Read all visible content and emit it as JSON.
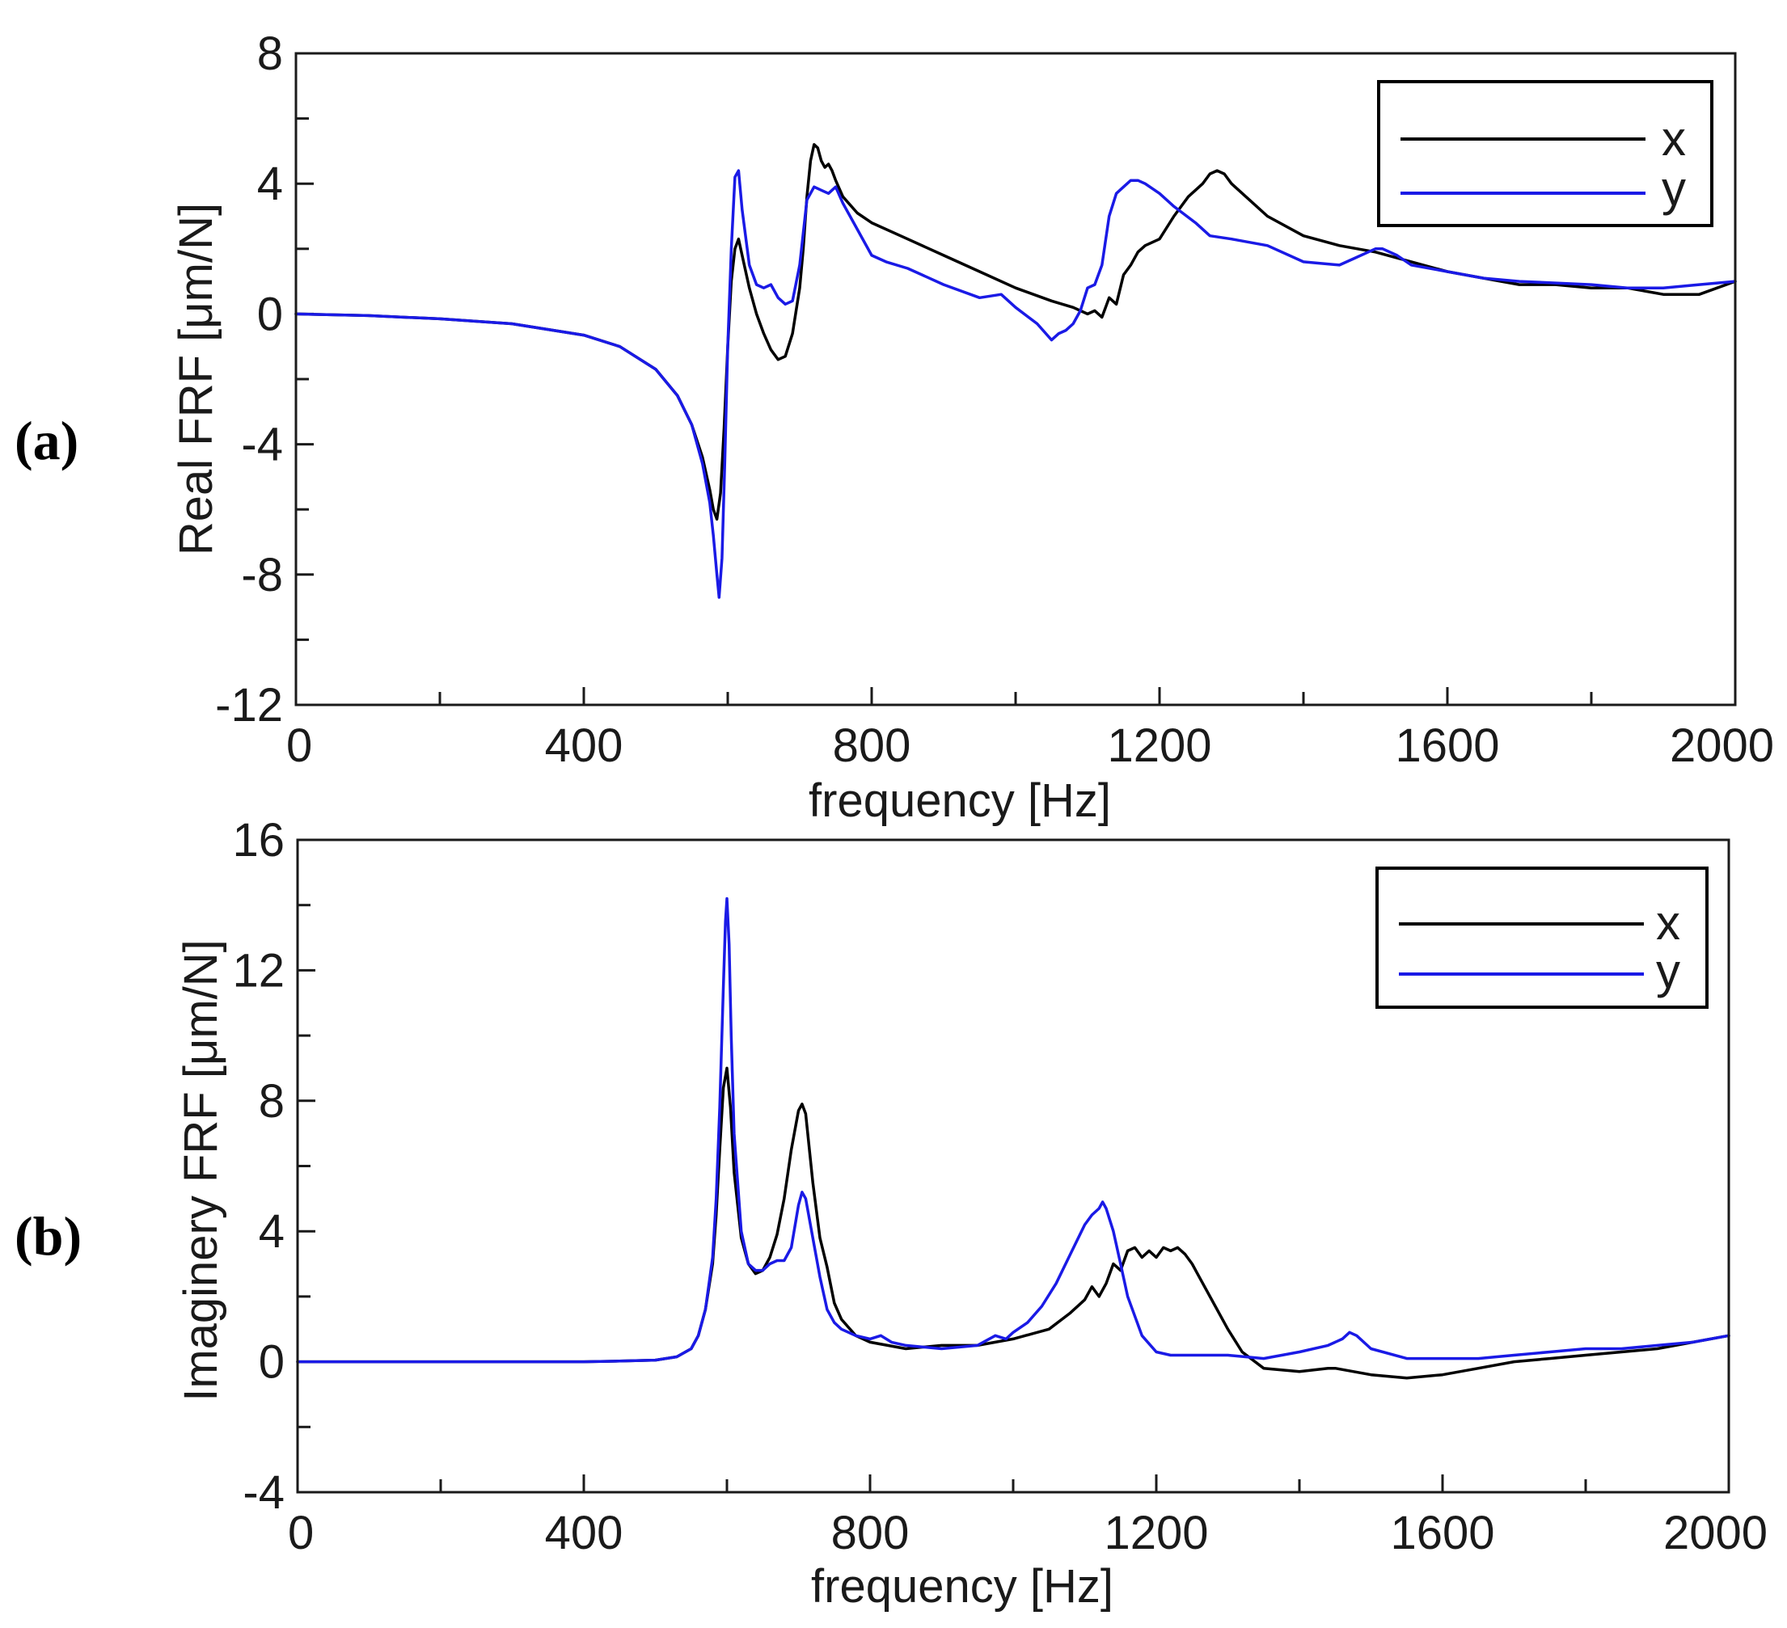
{
  "chart_data": [
    {
      "type": "line",
      "panel_label": "(a)",
      "title": "",
      "xlabel": "frequency [Hz]",
      "ylabel": "Real FRF [μm/N]",
      "xlim": [
        0,
        2000
      ],
      "ylim": [
        -12,
        8
      ],
      "xticks": [
        0,
        400,
        800,
        1200,
        1600,
        2000
      ],
      "xtick_labels": [
        "0",
        "400",
        "800",
        "1200",
        "1600",
        "2000"
      ],
      "yticks": [
        -12,
        -8,
        -4,
        0,
        4,
        8
      ],
      "ytick_labels": [
        "-12",
        "-8",
        "-4",
        "0",
        "4",
        "8"
      ],
      "legend_position": "top-right",
      "series": [
        {
          "name": "x",
          "color": "#000000",
          "x": [
            0,
            100,
            200,
            300,
            400,
            450,
            500,
            530,
            550,
            565,
            575,
            580,
            585,
            590,
            595,
            600,
            605,
            610,
            615,
            620,
            630,
            640,
            650,
            660,
            670,
            680,
            690,
            700,
            705,
            710,
            715,
            720,
            725,
            730,
            735,
            740,
            745,
            750,
            760,
            780,
            800,
            850,
            900,
            950,
            1000,
            1050,
            1080,
            1100,
            1110,
            1120,
            1125,
            1130,
            1140,
            1150,
            1160,
            1170,
            1180,
            1200,
            1220,
            1240,
            1260,
            1270,
            1280,
            1290,
            1300,
            1320,
            1350,
            1400,
            1450,
            1500,
            1550,
            1600,
            1650,
            1700,
            1750,
            1800,
            1850,
            1900,
            1950,
            2000
          ],
          "y": [
            0,
            -0.05,
            -0.15,
            -0.3,
            -0.65,
            -1.0,
            -1.7,
            -2.5,
            -3.4,
            -4.4,
            -5.4,
            -6.0,
            -6.3,
            -5.5,
            -3.5,
            -1.0,
            1.0,
            2.0,
            2.3,
            1.8,
            0.8,
            0.0,
            -0.6,
            -1.1,
            -1.4,
            -1.3,
            -0.6,
            0.8,
            2.0,
            3.6,
            4.7,
            5.2,
            5.1,
            4.7,
            4.5,
            4.6,
            4.4,
            4.1,
            3.6,
            3.1,
            2.8,
            2.3,
            1.8,
            1.3,
            0.8,
            0.4,
            0.2,
            0.0,
            0.1,
            -0.1,
            0.2,
            0.5,
            0.3,
            1.2,
            1.5,
            1.9,
            2.1,
            2.3,
            3.0,
            3.6,
            4.0,
            4.3,
            4.4,
            4.3,
            4.0,
            3.6,
            3.0,
            2.4,
            2.1,
            1.9,
            1.6,
            1.3,
            1.1,
            0.9,
            0.9,
            0.8,
            0.8,
            0.6,
            0.6,
            1.0
          ]
        },
        {
          "name": "y",
          "color": "#1a1ae6",
          "x": [
            0,
            100,
            200,
            300,
            400,
            450,
            500,
            530,
            550,
            565,
            575,
            580,
            585,
            588,
            592,
            596,
            600,
            605,
            610,
            615,
            620,
            630,
            640,
            650,
            660,
            670,
            680,
            690,
            700,
            710,
            720,
            730,
            740,
            750,
            760,
            780,
            800,
            820,
            850,
            900,
            950,
            980,
            1000,
            1030,
            1050,
            1060,
            1070,
            1080,
            1090,
            1100,
            1110,
            1120,
            1130,
            1140,
            1150,
            1160,
            1170,
            1180,
            1200,
            1220,
            1250,
            1270,
            1300,
            1350,
            1400,
            1450,
            1470,
            1490,
            1500,
            1510,
            1530,
            1550,
            1600,
            1650,
            1700,
            1800,
            1850,
            1900,
            1950,
            2000
          ],
          "y": [
            0,
            -0.05,
            -0.15,
            -0.3,
            -0.65,
            -1.0,
            -1.7,
            -2.5,
            -3.4,
            -4.6,
            -5.8,
            -6.8,
            -8.0,
            -8.7,
            -7.5,
            -4.5,
            -1.0,
            2.0,
            4.2,
            4.4,
            3.2,
            1.5,
            0.9,
            0.8,
            0.9,
            0.5,
            0.3,
            0.4,
            1.5,
            3.5,
            3.9,
            3.8,
            3.7,
            3.9,
            3.4,
            2.6,
            1.8,
            1.6,
            1.4,
            0.9,
            0.5,
            0.6,
            0.2,
            -0.3,
            -0.8,
            -0.6,
            -0.5,
            -0.3,
            0.1,
            0.8,
            0.9,
            1.5,
            3.0,
            3.7,
            3.9,
            4.1,
            4.1,
            4.0,
            3.7,
            3.3,
            2.8,
            2.4,
            2.3,
            2.1,
            1.6,
            1.5,
            1.7,
            1.9,
            2.0,
            2.0,
            1.8,
            1.5,
            1.3,
            1.1,
            1.0,
            0.9,
            0.8,
            0.8,
            0.9,
            1.0
          ]
        }
      ]
    },
    {
      "type": "line",
      "panel_label": "(b)",
      "title": "",
      "xlabel": "frequency [Hz]",
      "ylabel": "Imaginery FRF [μm/N]",
      "xlim": [
        0,
        2000
      ],
      "ylim": [
        -4,
        16
      ],
      "xticks": [
        0,
        400,
        800,
        1200,
        1600,
        2000
      ],
      "xtick_labels": [
        "0",
        "400",
        "800",
        "1200",
        "1600",
        "2000"
      ],
      "yticks": [
        -4,
        0,
        4,
        8,
        12,
        16
      ],
      "ytick_labels": [
        "-4",
        "0",
        "4",
        "8",
        "12",
        "16"
      ],
      "legend_position": "top-right",
      "series": [
        {
          "name": "x",
          "color": "#000000",
          "x": [
            0,
            300,
            400,
            450,
            500,
            530,
            550,
            560,
            570,
            580,
            585,
            590,
            595,
            600,
            605,
            610,
            620,
            630,
            640,
            650,
            660,
            670,
            680,
            690,
            700,
            705,
            710,
            720,
            730,
            740,
            750,
            760,
            780,
            800,
            850,
            900,
            950,
            1000,
            1050,
            1080,
            1100,
            1110,
            1120,
            1130,
            1140,
            1150,
            1160,
            1170,
            1180,
            1190,
            1200,
            1210,
            1220,
            1230,
            1240,
            1250,
            1260,
            1280,
            1300,
            1320,
            1350,
            1400,
            1440,
            1450,
            1500,
            1550,
            1600,
            1650,
            1700,
            1750,
            1800,
            1850,
            1900,
            1950,
            2000
          ],
          "y": [
            0,
            0,
            0,
            0.02,
            0.05,
            0.15,
            0.4,
            0.8,
            1.6,
            3.0,
            4.5,
            6.5,
            8.4,
            9.0,
            7.8,
            5.8,
            3.8,
            3.0,
            2.7,
            2.8,
            3.2,
            3.9,
            5.0,
            6.5,
            7.7,
            7.9,
            7.6,
            5.5,
            3.8,
            2.9,
            1.8,
            1.3,
            0.8,
            0.6,
            0.4,
            0.5,
            0.5,
            0.7,
            1.0,
            1.5,
            1.9,
            2.3,
            2.0,
            2.4,
            3.0,
            2.8,
            3.4,
            3.5,
            3.2,
            3.4,
            3.2,
            3.5,
            3.4,
            3.5,
            3.3,
            3.0,
            2.6,
            1.8,
            1.0,
            0.3,
            -0.2,
            -0.3,
            -0.2,
            -0.2,
            -0.4,
            -0.5,
            -0.4,
            -0.2,
            0.0,
            0.1,
            0.2,
            0.3,
            0.4,
            0.6,
            0.8
          ]
        },
        {
          "name": "y",
          "color": "#1a1ae6",
          "x": [
            0,
            300,
            400,
            450,
            500,
            530,
            550,
            560,
            570,
            580,
            585,
            590,
            595,
            598,
            600,
            603,
            606,
            610,
            620,
            630,
            640,
            650,
            660,
            670,
            680,
            690,
            700,
            705,
            710,
            720,
            730,
            740,
            750,
            760,
            780,
            800,
            815,
            830,
            850,
            900,
            950,
            975,
            990,
            1000,
            1020,
            1040,
            1060,
            1080,
            1100,
            1110,
            1120,
            1125,
            1130,
            1140,
            1150,
            1160,
            1180,
            1200,
            1220,
            1250,
            1300,
            1350,
            1400,
            1440,
            1460,
            1470,
            1480,
            1500,
            1550,
            1600,
            1650,
            1700,
            1750,
            1800,
            1850,
            1900,
            1950,
            2000
          ],
          "y": [
            0,
            0,
            0,
            0.02,
            0.05,
            0.15,
            0.4,
            0.8,
            1.6,
            3.2,
            5.0,
            7.8,
            11.5,
            13.5,
            14.2,
            12.8,
            10.0,
            7.0,
            4.0,
            3.0,
            2.8,
            2.8,
            3.0,
            3.1,
            3.1,
            3.5,
            4.8,
            5.2,
            5.0,
            3.8,
            2.6,
            1.6,
            1.2,
            1.0,
            0.8,
            0.7,
            0.8,
            0.6,
            0.5,
            0.4,
            0.5,
            0.8,
            0.7,
            0.9,
            1.2,
            1.7,
            2.4,
            3.3,
            4.2,
            4.5,
            4.7,
            4.9,
            4.7,
            4.0,
            3.0,
            2.0,
            0.8,
            0.3,
            0.2,
            0.2,
            0.2,
            0.1,
            0.3,
            0.5,
            0.7,
            0.9,
            0.8,
            0.4,
            0.1,
            0.1,
            0.1,
            0.2,
            0.3,
            0.4,
            0.4,
            0.5,
            0.6,
            0.8
          ]
        }
      ]
    }
  ]
}
